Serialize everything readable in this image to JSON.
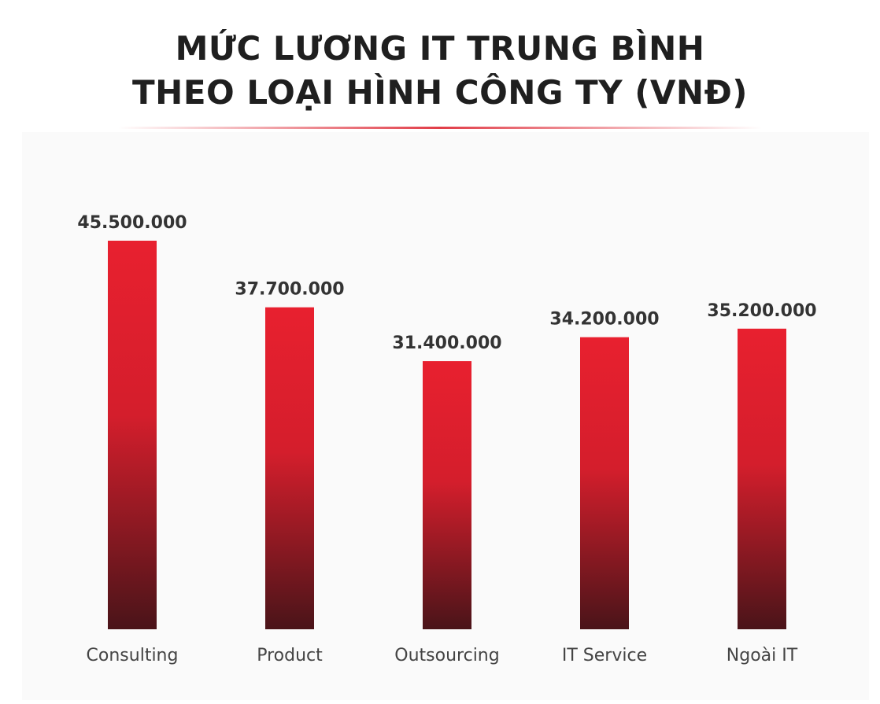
{
  "title_lines": [
    "MỨC LƯƠNG IT TRUNG BÌNH",
    "THEO LOẠI HÌNH CÔNG TY (VNĐ)"
  ],
  "colors": {
    "bar_top": "#e8202f",
    "bar_mid": "#d41e2c",
    "bar_bottom": "#4a1419",
    "title": "#1f1f1f"
  },
  "chart_data": {
    "type": "bar",
    "title": "MỨC LƯƠNG IT TRUNG BÌNH THEO LOẠI HÌNH CÔNG TY (VNĐ)",
    "categories": [
      "Consulting",
      "Product",
      "Outsourcing",
      "IT Service",
      "Ngoài IT"
    ],
    "values": [
      45500000,
      37700000,
      31400000,
      34200000,
      35200000
    ],
    "value_labels": [
      "45.500.000",
      "37.700.000",
      "31.400.000",
      "34.200.000",
      "35.200.000"
    ],
    "ylim": [
      0,
      45500000
    ],
    "xlabel": "",
    "ylabel": "",
    "grid": false,
    "legend": "none"
  }
}
